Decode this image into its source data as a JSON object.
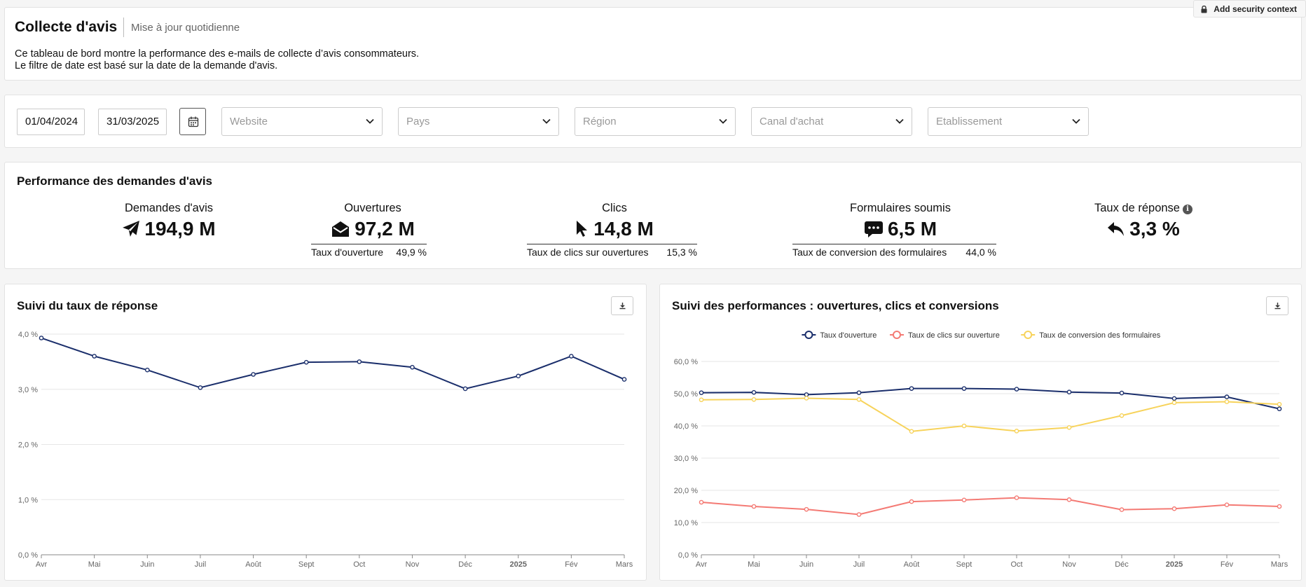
{
  "header": {
    "title": "Collecte d'avis",
    "subtitle": "Mise à jour quotidienne",
    "description_line1": "Ce tableau de bord montre la performance des e-mails de collecte d’avis consommateurs.",
    "description_line2": "Le filtre de date est basé sur la date de la demande d'avis.",
    "security_button": "Add security context"
  },
  "filters": {
    "date_start": "01/04/2024",
    "date_end": "31/03/2025",
    "website": "Website",
    "country": "Pays",
    "region": "Région",
    "channel": "Canal d'achat",
    "establishment": "Etablissement"
  },
  "performance": {
    "title": "Performance des demandes d'avis",
    "kpis": {
      "requests": {
        "label": "Demandes d'avis",
        "value": "194,9 M"
      },
      "opens": {
        "label": "Ouvertures",
        "value": "97,2 M",
        "sub_label": "Taux d'ouverture",
        "sub_value": "49,9 %"
      },
      "clicks": {
        "label": "Clics",
        "value": "14,8 M",
        "sub_label": "Taux de clics sur ouvertures",
        "sub_value": "15,3 %"
      },
      "forms": {
        "label": "Formulaires soumis",
        "value": "6,5 M",
        "sub_label": "Taux de conversion des formulaires",
        "sub_value": "44,0 %"
      },
      "response": {
        "label": "Taux de réponse",
        "value": "3,3 %"
      }
    }
  },
  "colors": {
    "navy": "#1a2e6b",
    "red": "#f47a74",
    "yellow": "#f7d35b",
    "grid": "#e6e6e6"
  },
  "chart_data": [
    {
      "type": "line",
      "title": "Suivi du taux de réponse",
      "categories": [
        "Avr",
        "Mai",
        "Juin",
        "Juil",
        "Août",
        "Sept",
        "Oct",
        "Nov",
        "Déc",
        "2025",
        "Fév",
        "Mars"
      ],
      "bold_categories": [
        "2025"
      ],
      "ylim": [
        0,
        4
      ],
      "yticks": [
        0,
        1,
        2,
        3,
        4
      ],
      "ytick_labels": [
        "0,0 %",
        "1,0 %",
        "2,0 %",
        "3,0 %",
        "4,0 %"
      ],
      "series": [
        {
          "name": "Taux de réponse",
          "color": "#1a2e6b",
          "values": [
            3.93,
            3.6,
            3.35,
            3.03,
            3.27,
            3.49,
            3.5,
            3.4,
            3.01,
            3.24,
            3.6,
            3.18
          ]
        }
      ]
    },
    {
      "type": "line",
      "title": "Suivi des performances : ouvertures, clics et conversions",
      "categories": [
        "Avr",
        "Mai",
        "Juin",
        "Juil",
        "Août",
        "Sept",
        "Oct",
        "Nov",
        "Déc",
        "2025",
        "Fév",
        "Mars"
      ],
      "bold_categories": [
        "2025"
      ],
      "ylim": [
        0,
        60
      ],
      "yticks": [
        0,
        10,
        20,
        30,
        40,
        50,
        60
      ],
      "ytick_labels": [
        "0,0 %",
        "10,0 %",
        "20,0 %",
        "30,0 %",
        "40,0 %",
        "50,0 %",
        "60,0 %"
      ],
      "legend": "top-center",
      "series": [
        {
          "name": "Taux d'ouverture",
          "color": "#1a2e6b",
          "values": [
            50.3,
            50.4,
            49.7,
            50.3,
            51.6,
            51.6,
            51.4,
            50.5,
            50.2,
            48.5,
            49.0,
            45.3
          ]
        },
        {
          "name": "Taux de clics sur ouverture",
          "color": "#f47a74",
          "values": [
            16.3,
            15.0,
            14.1,
            12.5,
            16.5,
            17.0,
            17.7,
            17.1,
            14.0,
            14.3,
            15.5,
            15.0
          ]
        },
        {
          "name": "Taux de conversion des formulaires",
          "color": "#f7d35b",
          "values": [
            48.1,
            48.2,
            48.6,
            48.2,
            38.3,
            40.0,
            38.4,
            39.5,
            43.2,
            47.2,
            47.5,
            46.7
          ]
        }
      ]
    }
  ]
}
